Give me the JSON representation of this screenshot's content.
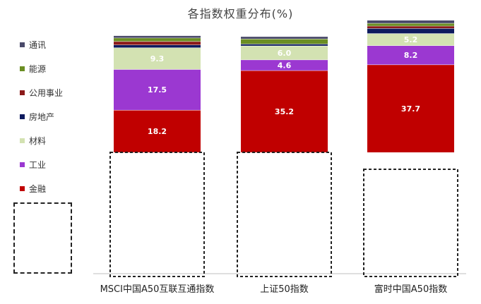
{
  "chart_data": {
    "type": "bar",
    "stacked": true,
    "title": "各指数权重分布(%)",
    "xlabel": "",
    "ylabel": "",
    "categories": [
      "MSCI中国A50互联互通指数",
      "上证50指数",
      "富时中国A50指数"
    ],
    "series": [
      {
        "name": "金融",
        "color": "#c00000",
        "values": [
          18.2,
          35.2,
          37.7
        ],
        "labels": [
          "18.2",
          "35.2",
          "37.7"
        ]
      },
      {
        "name": "工业",
        "color": "#9b38d1",
        "values": [
          17.5,
          4.6,
          8.2
        ],
        "labels": [
          "17.5",
          "4.6",
          "8.2"
        ]
      },
      {
        "name": "材料",
        "color": "#d3e2b2",
        "values": [
          9.3,
          6.0,
          5.2
        ],
        "labels": [
          "9.3",
          "6.0",
          "5.2"
        ]
      },
      {
        "name": "房地产",
        "color": "#0d1a5e",
        "values": [
          1.2,
          0.8,
          2.2
        ],
        "labels": [
          "",
          "",
          ""
        ]
      },
      {
        "name": "公用事业",
        "color": "#8b1a1a",
        "values": [
          1.5,
          0.0,
          1.0
        ],
        "labels": [
          "",
          "",
          ""
        ]
      },
      {
        "name": "能源",
        "color": "#6b8e23",
        "values": [
          1.5,
          2.2,
          1.2
        ],
        "labels": [
          "",
          "",
          ""
        ]
      },
      {
        "name": "通讯",
        "color": "#4a4a6a",
        "values": [
          1.0,
          1.0,
          1.3
        ],
        "labels": [
          "",
          "",
          ""
        ]
      }
    ],
    "legend_position": "left",
    "grid": false
  }
}
